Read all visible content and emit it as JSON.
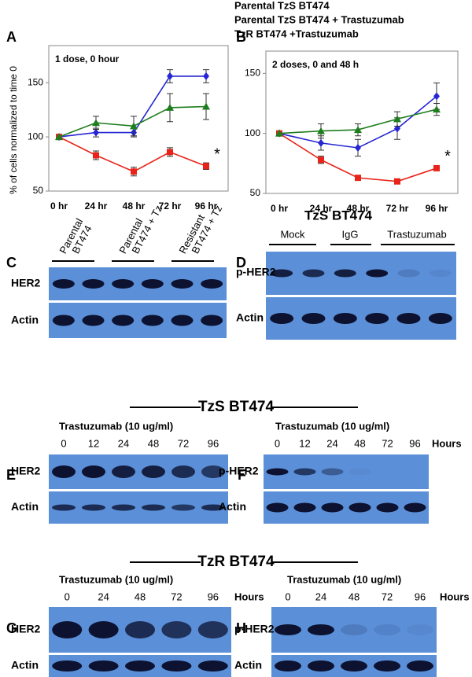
{
  "chart_data": [
    {
      "type": "line",
      "panel": "A",
      "annotation": "1 dose, 0 hour",
      "y_label": "% of cells normalized to time 0",
      "categories": [
        "0 hr",
        "24 hr",
        "48 hr",
        "72 hr",
        "96 hr"
      ],
      "series": [
        {
          "name": "Parental TzS BT474",
          "color": "#2626d4",
          "marker": "diamond",
          "values": [
            100,
            104,
            104,
            156,
            156
          ],
          "errors": [
            0,
            4,
            4,
            6,
            6
          ]
        },
        {
          "name": "Parental TzS BT474 + Trastuzumab",
          "color": "#e8241a",
          "marker": "square",
          "values": [
            100,
            83,
            68,
            86,
            73
          ],
          "errors": [
            0,
            4,
            4,
            4,
            3
          ]
        },
        {
          "name": "TzR BT474 +Trastuzumab",
          "color": "#1e7d1e",
          "marker": "triangle",
          "values": [
            100,
            113,
            110,
            127,
            128
          ],
          "errors": [
            0,
            6,
            9,
            13,
            12
          ]
        }
      ],
      "marker_note": "*",
      "ylim": [
        50,
        177
      ],
      "yticks": [
        50,
        100,
        150
      ]
    },
    {
      "type": "line",
      "panel": "B",
      "annotation": "2 doses, 0 and 48 h",
      "categories": [
        "0 hr",
        "24 hr",
        "48 hr",
        "72 hr",
        "96 hr"
      ],
      "series": [
        {
          "color": "#2626d4",
          "marker": "diamond",
          "values": [
            100,
            92,
            88,
            104,
            131
          ],
          "errors": [
            0,
            6,
            7,
            9,
            11
          ]
        },
        {
          "color": "#e8241a",
          "marker": "square",
          "values": [
            100,
            78,
            63,
            60,
            71
          ],
          "errors": [
            0,
            3,
            2,
            1,
            2
          ]
        },
        {
          "color": "#1e7d1e",
          "marker": "triangle",
          "values": [
            100,
            102,
            103,
            112,
            120
          ],
          "errors": [
            0,
            6,
            5,
            6,
            5
          ]
        }
      ],
      "marker_note": "*",
      "ylim": [
        50,
        162
      ],
      "yticks": [
        50,
        100,
        150
      ]
    }
  ],
  "blots": {
    "C": {
      "panel": "C",
      "lane_groups": [
        [
          "Parental",
          "BT474"
        ],
        [
          "Parental",
          "BT474 + Tz"
        ],
        [
          "Resistant",
          "BT474 + Tz"
        ]
      ],
      "rows": [
        "HER2",
        "Actin"
      ]
    },
    "D": {
      "panel": "D",
      "title": "TzS BT474",
      "lane_groups": [
        "Mock",
        "IgG",
        "Trastuzumab"
      ],
      "rows": [
        "p-HER2",
        "Actin"
      ]
    },
    "E": {
      "panel": "E",
      "treatment": "Trastuzumab (10 ug/ml)",
      "timepoints": [
        "0",
        "12",
        "24",
        "48",
        "72",
        "96"
      ],
      "rows": [
        "HER2",
        "Actin"
      ]
    },
    "F": {
      "panel": "F",
      "treatment": "Trastuzumab (10 ug/ml)",
      "timepoints": [
        "0",
        "12",
        "24",
        "48",
        "72",
        "96"
      ],
      "unit": "Hours",
      "rows": [
        "p-HER2",
        "Actin"
      ]
    },
    "G": {
      "panel": "G",
      "treatment": "Trastuzumab (10 ug/ml)",
      "timepoints": [
        "0",
        "24",
        "48",
        "72",
        "96"
      ],
      "unit": "Hours",
      "rows": [
        "HER2",
        "Actin"
      ]
    },
    "H": {
      "panel": "H",
      "treatment": "Trastuzumab (10 ug/ml)",
      "timepoints": [
        "0",
        "24",
        "48",
        "72",
        "96"
      ],
      "unit": "Hours",
      "rows": [
        "p-HER2",
        "Actin"
      ]
    }
  },
  "sections": [
    "TzS BT474",
    "TzR BT474"
  ]
}
